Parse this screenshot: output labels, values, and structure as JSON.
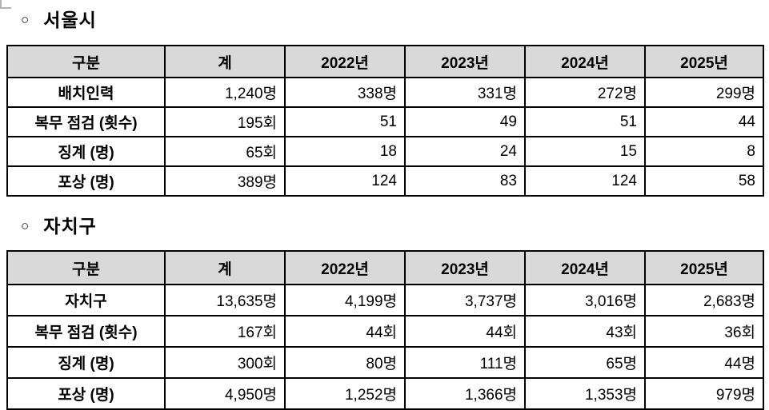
{
  "colors": {
    "header_bg": "#d9d9d9",
    "border": "#000000",
    "text": "#000000",
    "artifact_gray": "#b3b3b3"
  },
  "sections": [
    {
      "title_bullet": "○",
      "title": "서울시",
      "table": {
        "headers": [
          "구분",
          "계",
          "2022년",
          "2023년",
          "2024년",
          "2025년"
        ],
        "rows": [
          {
            "label": "배치인력",
            "values": [
              "1,240명",
              "338명",
              "331명",
              "272명",
              "299명"
            ]
          },
          {
            "label": "복무 점검 (횟수)",
            "values": [
              "195회",
              "51",
              "49",
              "51",
              "44"
            ]
          },
          {
            "label": "징계 (명)",
            "values": [
              "65회",
              "18",
              "24",
              "15",
              "8"
            ]
          },
          {
            "label": "포상 (명)",
            "values": [
              "389명",
              "124",
              "83",
              "124",
              "58"
            ]
          }
        ]
      }
    },
    {
      "title_bullet": "○",
      "title": "자치구",
      "table": {
        "headers": [
          "구분",
          "계",
          "2022년",
          "2023년",
          "2024년",
          "2025년"
        ],
        "rows": [
          {
            "label": "자치구",
            "values": [
              "13,635명",
              "4,199명",
              "3,737명",
              "3,016명",
              "2,683명"
            ]
          },
          {
            "label": "복무 점검 (횟수)",
            "values": [
              "167회",
              "44회",
              "44회",
              "43회",
              "36회"
            ]
          },
          {
            "label": "징계 (명)",
            "values": [
              "300회",
              "80명",
              "111명",
              "65명",
              "44명"
            ]
          },
          {
            "label": "포상 (명)",
            "values": [
              "4,950명",
              "1,252명",
              "1,366명",
              "1,353명",
              "979명"
            ]
          }
        ]
      }
    }
  ]
}
